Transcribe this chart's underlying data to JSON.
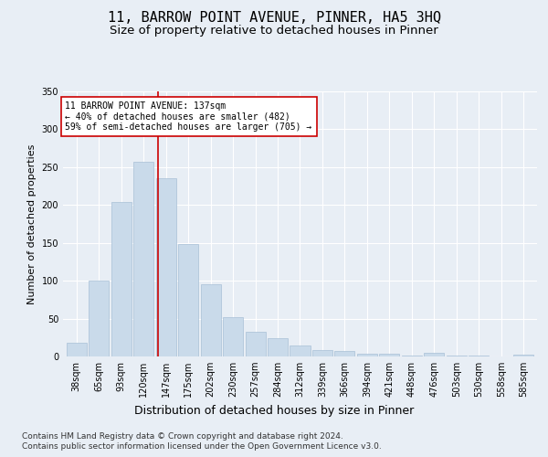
{
  "title1": "11, BARROW POINT AVENUE, PINNER, HA5 3HQ",
  "title2": "Size of property relative to detached houses in Pinner",
  "xlabel": "Distribution of detached houses by size in Pinner",
  "ylabel": "Number of detached properties",
  "bar_labels": [
    "38sqm",
    "65sqm",
    "93sqm",
    "120sqm",
    "147sqm",
    "175sqm",
    "202sqm",
    "230sqm",
    "257sqm",
    "284sqm",
    "312sqm",
    "339sqm",
    "366sqm",
    "394sqm",
    "421sqm",
    "448sqm",
    "476sqm",
    "503sqm",
    "530sqm",
    "558sqm",
    "585sqm"
  ],
  "bar_values": [
    18,
    100,
    204,
    257,
    235,
    149,
    95,
    52,
    32,
    24,
    14,
    9,
    7,
    4,
    4,
    1,
    5,
    1,
    1,
    0,
    2
  ],
  "bar_color": "#c9daea",
  "bar_edgecolor": "#a8c0d6",
  "vline_color": "#cc0000",
  "annotation_line1": "11 BARROW POINT AVENUE: 137sqm",
  "annotation_line2": "← 40% of detached houses are smaller (482)",
  "annotation_line3": "59% of semi-detached houses are larger (705) →",
  "annotation_box_facecolor": "#ffffff",
  "annotation_box_edgecolor": "#cc0000",
  "footer1": "Contains HM Land Registry data © Crown copyright and database right 2024.",
  "footer2": "Contains public sector information licensed under the Open Government Licence v3.0.",
  "bg_color": "#e8eef5",
  "ylim": [
    0,
    350
  ],
  "yticks": [
    0,
    50,
    100,
    150,
    200,
    250,
    300,
    350
  ],
  "title1_fontsize": 11,
  "title2_fontsize": 9.5,
  "xlabel_fontsize": 9,
  "ylabel_fontsize": 8,
  "tick_fontsize": 7,
  "footer_fontsize": 6.5
}
